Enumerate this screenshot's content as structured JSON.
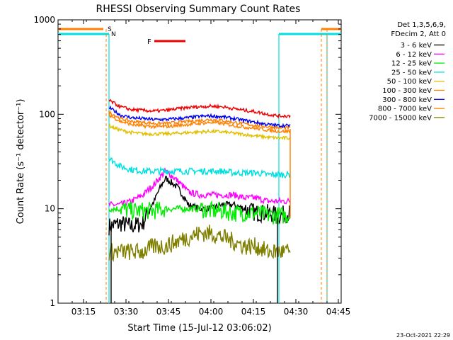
{
  "chart_data": {
    "type": "line",
    "title": "RHESSI Observing Summary Count Rates",
    "xlabel": "Start Time (15-Jul-12 03:06:02)",
    "ylabel": "Count Rate (s⁻¹ detector⁻¹)",
    "xlim": [
      "03:06",
      "04:46"
    ],
    "ylim": [
      1,
      1000
    ],
    "yscale": "log",
    "x_ticks": [
      "03:15",
      "03:30",
      "03:45",
      "04:00",
      "04:15",
      "04:30",
      "04:45"
    ],
    "y_ticks": [
      "1",
      "10",
      "100",
      "1000"
    ],
    "legend_header": [
      "Det 1,3,5,6,9,",
      "FDecim 2, Att 0"
    ],
    "legend_position": "top-right, outside plot",
    "timestamp": "23-Oct-2021 22:29",
    "flags": [
      {
        "label": "S",
        "color": "#ff8000",
        "time": "03:24"
      },
      {
        "label": "N",
        "color": "#00e0e0",
        "time": "03:24"
      },
      {
        "label": "F",
        "color": "#ee0000",
        "start": "03:40",
        "end": "03:51"
      }
    ],
    "night_intervals": [
      {
        "color": "#00e0e0",
        "start": "03:06",
        "end": "03:24"
      },
      {
        "color": "#00e0e0",
        "start": "04:24",
        "end": "04:46"
      }
    ],
    "saa_intervals": [
      {
        "color": "#ff8000",
        "start": "03:06",
        "end": "03:22"
      },
      {
        "color": "#ff8000",
        "start": "04:39",
        "end": "04:46"
      }
    ],
    "data_start": "03:24",
    "data_end": "04:28",
    "x": [
      "03:24",
      "03:28",
      "03:32",
      "03:36",
      "03:40",
      "03:44",
      "03:48",
      "03:52",
      "03:56",
      "04:00",
      "04:04",
      "04:08",
      "04:12",
      "04:16",
      "04:20",
      "04:24",
      "04:28"
    ],
    "series": [
      {
        "name": "3 - 6 keV",
        "color": "#000000",
        "values": [
          6.5,
          7,
          6.5,
          7,
          12,
          21,
          17,
          11,
          10,
          10,
          11,
          11,
          10,
          9,
          9,
          8.5,
          9
        ]
      },
      {
        "name": "6 - 12 keV",
        "color": "#ff00ff",
        "values": [
          11,
          11,
          12,
          14,
          18,
          25,
          20,
          15,
          14,
          14,
          14,
          14,
          13,
          13,
          12,
          12,
          12
        ]
      },
      {
        "name": "12 - 25 keV",
        "color": "#00ee00",
        "values": [
          10,
          10,
          9.5,
          9.5,
          9.5,
          10,
          10,
          10,
          10,
          9.5,
          9.5,
          9,
          9,
          9,
          8.5,
          8.5,
          8.5
        ]
      },
      {
        "name": "25 - 50 keV",
        "color": "#00e0e0",
        "values": [
          34,
          28,
          26,
          25,
          25,
          25,
          25,
          25,
          25,
          25,
          25,
          24,
          24,
          24,
          23,
          23,
          23
        ]
      },
      {
        "name": "50 - 100 keV",
        "color": "#e0c000",
        "values": [
          75,
          68,
          64,
          62,
          62,
          62,
          63,
          64,
          65,
          66,
          65,
          63,
          61,
          59,
          57,
          56,
          56
        ]
      },
      {
        "name": "100 - 300 keV",
        "color": "#ff8000",
        "values": [
          105,
          90,
          84,
          82,
          80,
          80,
          82,
          84,
          86,
          88,
          86,
          82,
          79,
          76,
          74,
          72,
          72
        ]
      },
      {
        "name": "300 - 800 keV",
        "color": "#0000ee",
        "values": [
          118,
          98,
          92,
          90,
          88,
          88,
          90,
          92,
          95,
          96,
          94,
          90,
          86,
          82,
          78,
          76,
          76
        ]
      },
      {
        "name": "800 - 7000 keV",
        "color": "#ff8000",
        "values": [
          98,
          84,
          78,
          75,
          74,
          74,
          76,
          78,
          80,
          82,
          80,
          76,
          73,
          71,
          68,
          66,
          66
        ]
      },
      {
        "name": "7000 - 15000 keV",
        "color": "#808000",
        "values": [
          3.5,
          3.5,
          3.5,
          3.5,
          4,
          4,
          4.5,
          5,
          5.5,
          5.5,
          5,
          4.5,
          4,
          4,
          3.5,
          3.5,
          3.5
        ]
      },
      {
        "name": "",
        "color": "#ee0000",
        "values": [
          140,
          120,
          112,
          110,
          108,
          110,
          114,
          118,
          120,
          122,
          120,
          115,
          110,
          106,
          100,
          96,
          96
        ]
      }
    ]
  }
}
